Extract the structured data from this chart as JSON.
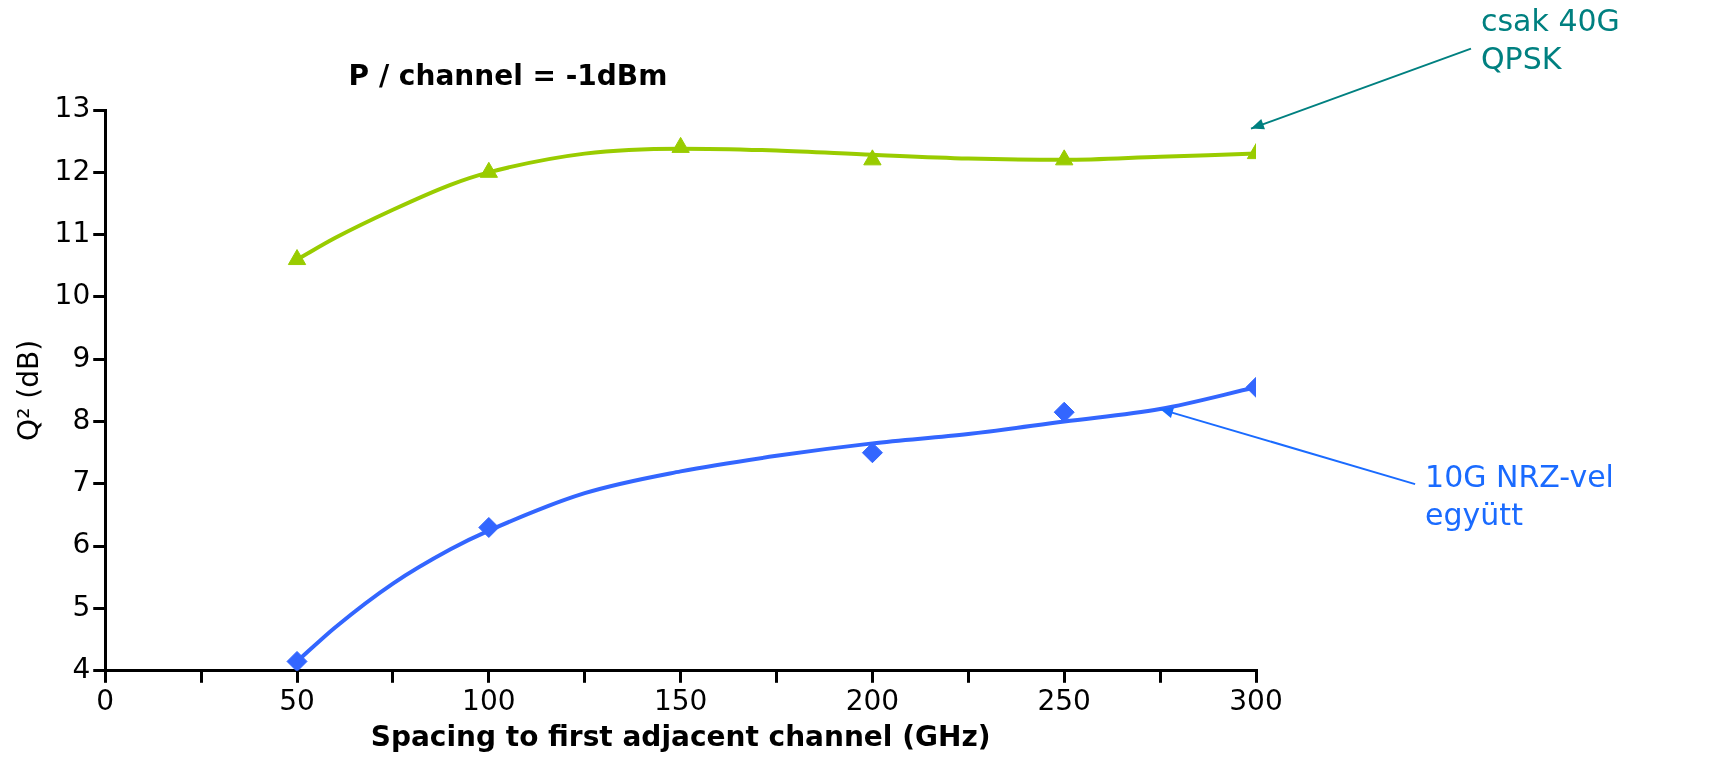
{
  "chart_data": {
    "type": "scatter",
    "title": "P / channel = -1dBm",
    "xlabel": "Spacing to first adjacent channel (GHz)",
    "ylabel": "Q² (dB)",
    "xlim": [
      0,
      300
    ],
    "xticks": [
      0,
      {
        "value": 25,
        "label": null
      },
      50,
      {
        "value": 75,
        "label": null
      },
      100,
      {
        "value": 125,
        "label": null
      },
      150,
      {
        "value": 175,
        "label": null
      },
      200,
      {
        "value": 225,
        "label": null
      },
      250,
      {
        "value": 275,
        "label": null
      },
      300
    ],
    "ylim": [
      4,
      13
    ],
    "yticks": [
      4,
      5,
      6,
      7,
      8,
      9,
      10,
      11,
      12,
      13
    ],
    "grid": false,
    "legend": false,
    "series": [
      {
        "type": "line",
        "color": "#99cc00",
        "x": [
          50,
          60,
          75,
          90,
          100,
          125,
          150,
          175,
          200,
          225,
          250,
          275,
          300
        ],
        "values": [
          10.6,
          10.95,
          11.4,
          11.8,
          12.0,
          12.3,
          12.38,
          12.35,
          12.28,
          12.22,
          12.2,
          12.25,
          12.3
        ]
      },
      {
        "type": "line",
        "color": "#3366ff",
        "x": [
          50,
          60,
          75,
          90,
          100,
          125,
          150,
          175,
          200,
          225,
          250,
          275,
          300
        ],
        "values": [
          4.15,
          4.7,
          5.4,
          5.95,
          6.25,
          6.85,
          7.2,
          7.45,
          7.65,
          7.8,
          8.0,
          8.2,
          8.55
        ]
      },
      {
        "type": "scatter",
        "marker": "triangle",
        "color": "#99cc00",
        "x": [
          50,
          100,
          150,
          200,
          250,
          300
        ],
        "values": [
          10.6,
          12.0,
          12.4,
          12.2,
          12.2,
          12.3
        ]
      },
      {
        "type": "scatter",
        "marker": "diamond",
        "color": "#3366ff",
        "x": [
          50,
          100,
          200,
          250,
          300
        ],
        "values": [
          4.15,
          6.3,
          7.5,
          8.15,
          8.55
        ]
      }
    ],
    "annotations": [
      "csak 40G\nQPSK",
      {
        "text": "10G NRZ-vel\negyütt",
        "x": 275,
        "y": 8.2
      }
    ]
  }
}
